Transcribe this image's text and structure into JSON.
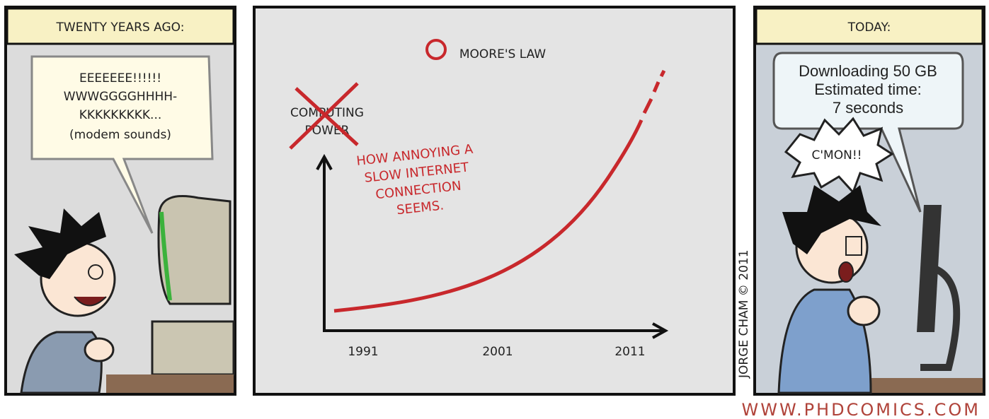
{
  "panels": [
    {
      "caption": "TWENTY YEARS AGO:",
      "speech": [
        "EEEEEEE!!!!!!",
        "WWWGGGGHHHH-",
        "KKKKKKKKK...",
        "(modem sounds)"
      ]
    },
    {
      "title": "MOORE'S LAW",
      "crossed_label": [
        "COMPUTING",
        "POWER"
      ],
      "axis_label": [
        "HOW ANNOYING A",
        "SLOW INTERNET",
        "CONNECTION",
        "SEEMS."
      ],
      "x_labels": [
        "1991",
        "2001",
        "2011"
      ]
    },
    {
      "caption": "TODAY:",
      "screen_message": [
        "Downloading 50 GB",
        "Estimated time:",
        "7 seconds"
      ],
      "exclamation": "C'MON!!"
    }
  ],
  "credit": "JORGE CHAM © 2011",
  "url": "WWW.PHDCOMICS.COM"
}
